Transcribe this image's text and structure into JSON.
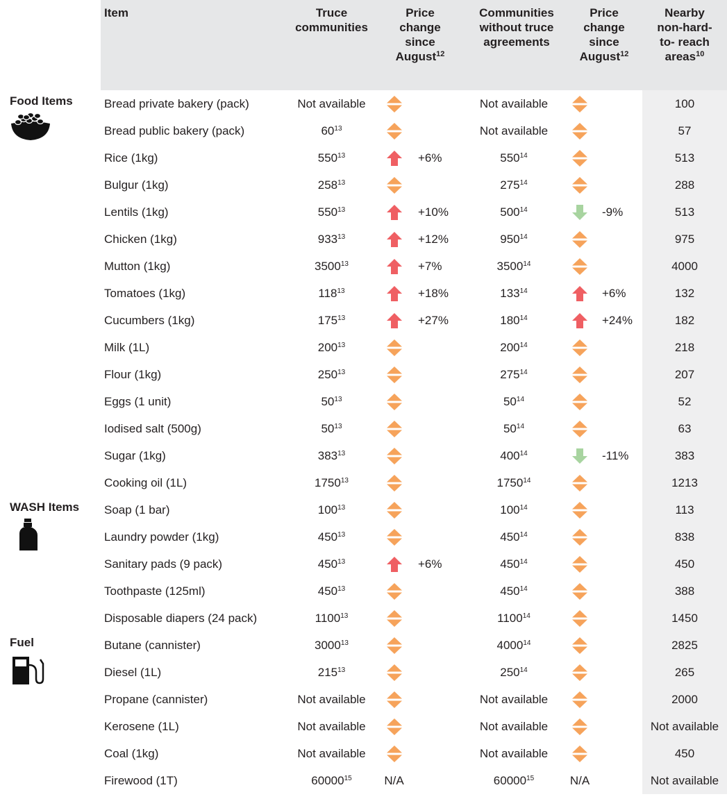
{
  "header": {
    "columns": [
      {
        "text": "Item"
      },
      {
        "text": "Truce communities"
      },
      {
        "text": "Price change since August",
        "note": "12"
      },
      {
        "text": "Communities without truce agreements"
      },
      {
        "text": "Price change since August",
        "note": "12"
      },
      {
        "text": "Nearby non-hard- to- reach areas",
        "note": "10"
      }
    ]
  },
  "groups": [
    {
      "name": "Food Items",
      "icon": "food",
      "rows": [
        {
          "item": "Bread private bakery (pack)",
          "truce": {
            "value": "Not available"
          },
          "truce_change": {
            "icon": "same"
          },
          "non_truce": {
            "value": "Not available"
          },
          "non_truce_change": {
            "icon": "same"
          },
          "nearby": "100"
        },
        {
          "item": "Bread public bakery (pack)",
          "truce": {
            "value": "60",
            "note": "13"
          },
          "truce_change": {
            "icon": "same"
          },
          "non_truce": {
            "value": "Not available"
          },
          "non_truce_change": {
            "icon": "same"
          },
          "nearby": "57"
        },
        {
          "item": "Rice (1kg)",
          "truce": {
            "value": "550",
            "note": "13"
          },
          "truce_change": {
            "icon": "up",
            "label": "+6%"
          },
          "non_truce": {
            "value": "550",
            "note": "14"
          },
          "non_truce_change": {
            "icon": "same"
          },
          "nearby": "513"
        },
        {
          "item": "Bulgur (1kg)",
          "truce": {
            "value": "258",
            "note": "13"
          },
          "truce_change": {
            "icon": "same"
          },
          "non_truce": {
            "value": "275",
            "note": "14"
          },
          "non_truce_change": {
            "icon": "same"
          },
          "nearby": "288"
        },
        {
          "item": "Lentils (1kg)",
          "truce": {
            "value": "550",
            "note": "13"
          },
          "truce_change": {
            "icon": "up",
            "label": "+10%"
          },
          "non_truce": {
            "value": "500",
            "note": "14"
          },
          "non_truce_change": {
            "icon": "down",
            "label": "-9%"
          },
          "nearby": "513"
        },
        {
          "item": "Chicken (1kg)",
          "truce": {
            "value": "933",
            "note": "13"
          },
          "truce_change": {
            "icon": "up",
            "label": "+12%"
          },
          "non_truce": {
            "value": "950",
            "note": "14"
          },
          "non_truce_change": {
            "icon": "same"
          },
          "nearby": "975"
        },
        {
          "item": "Mutton (1kg)",
          "truce": {
            "value": "3500",
            "note": "13"
          },
          "truce_change": {
            "icon": "up",
            "label": "+7%"
          },
          "non_truce": {
            "value": "3500",
            "note": "14"
          },
          "non_truce_change": {
            "icon": "same"
          },
          "nearby": "4000"
        },
        {
          "item": "Tomatoes (1kg)",
          "truce": {
            "value": "118",
            "note": "13"
          },
          "truce_change": {
            "icon": "up",
            "label": "+18%"
          },
          "non_truce": {
            "value": "133",
            "note": "14"
          },
          "non_truce_change": {
            "icon": "up",
            "label": "+6%"
          },
          "nearby": "132"
        },
        {
          "item": "Cucumbers (1kg)",
          "truce": {
            "value": "175",
            "note": "13"
          },
          "truce_change": {
            "icon": "up",
            "label": "+27%"
          },
          "non_truce": {
            "value": "180",
            "note": "14"
          },
          "non_truce_change": {
            "icon": "up",
            "label": "+24%"
          },
          "nearby": "182"
        },
        {
          "item": "Milk (1L)",
          "truce": {
            "value": "200",
            "note": "13"
          },
          "truce_change": {
            "icon": "same"
          },
          "non_truce": {
            "value": "200",
            "note": "14"
          },
          "non_truce_change": {
            "icon": "same"
          },
          "nearby": "218"
        },
        {
          "item": "Flour (1kg)",
          "truce": {
            "value": "250",
            "note": "13"
          },
          "truce_change": {
            "icon": "same"
          },
          "non_truce": {
            "value": "275",
            "note": "14"
          },
          "non_truce_change": {
            "icon": "same"
          },
          "nearby": "207"
        },
        {
          "item": "Eggs (1 unit)",
          "truce": {
            "value": "50",
            "note": "13"
          },
          "truce_change": {
            "icon": "same"
          },
          "non_truce": {
            "value": "50",
            "note": "14"
          },
          "non_truce_change": {
            "icon": "same"
          },
          "nearby": "52"
        },
        {
          "item": "Iodised salt (500g)",
          "truce": {
            "value": "50",
            "note": "13"
          },
          "truce_change": {
            "icon": "same"
          },
          "non_truce": {
            "value": "50",
            "note": "14"
          },
          "non_truce_change": {
            "icon": "same"
          },
          "nearby": "63"
        },
        {
          "item": "Sugar (1kg)",
          "truce": {
            "value": "383",
            "note": "13"
          },
          "truce_change": {
            "icon": "same"
          },
          "non_truce": {
            "value": "400",
            "note": "14"
          },
          "non_truce_change": {
            "icon": "down",
            "label": "-11%"
          },
          "nearby": "383"
        },
        {
          "item": "Cooking oil (1L)",
          "truce": {
            "value": "1750",
            "note": "13"
          },
          "truce_change": {
            "icon": "same"
          },
          "non_truce": {
            "value": "1750",
            "note": "14"
          },
          "non_truce_change": {
            "icon": "same"
          },
          "nearby": "1213"
        }
      ]
    },
    {
      "name": "WASH Items",
      "icon": "wash",
      "rows": [
        {
          "item": "Soap (1 bar)",
          "truce": {
            "value": "100",
            "note": "13"
          },
          "truce_change": {
            "icon": "same"
          },
          "non_truce": {
            "value": "100",
            "note": "14"
          },
          "non_truce_change": {
            "icon": "same"
          },
          "nearby": "113"
        },
        {
          "item": "Laundry powder (1kg)",
          "truce": {
            "value": "450",
            "note": "13"
          },
          "truce_change": {
            "icon": "same"
          },
          "non_truce": {
            "value": "450",
            "note": "14"
          },
          "non_truce_change": {
            "icon": "same"
          },
          "nearby": "838"
        },
        {
          "item": "Sanitary pads (9 pack)",
          "truce": {
            "value": "450",
            "note": "13"
          },
          "truce_change": {
            "icon": "up",
            "label": "+6%"
          },
          "non_truce": {
            "value": "450",
            "note": "14"
          },
          "non_truce_change": {
            "icon": "same"
          },
          "nearby": "450"
        },
        {
          "item": "Toothpaste (125ml)",
          "truce": {
            "value": "450",
            "note": "13"
          },
          "truce_change": {
            "icon": "same"
          },
          "non_truce": {
            "value": "450",
            "note": "14"
          },
          "non_truce_change": {
            "icon": "same"
          },
          "nearby": "388"
        },
        {
          "item": "Disposable diapers (24 pack)",
          "truce": {
            "value": "1100",
            "note": "13"
          },
          "truce_change": {
            "icon": "same"
          },
          "non_truce": {
            "value": "1100",
            "note": "14"
          },
          "non_truce_change": {
            "icon": "same"
          },
          "nearby": "1450"
        }
      ]
    },
    {
      "name": "Fuel",
      "icon": "fuel",
      "rows": [
        {
          "item": "Butane (cannister)",
          "truce": {
            "value": "3000",
            "note": "13"
          },
          "truce_change": {
            "icon": "same"
          },
          "non_truce": {
            "value": "4000",
            "note": "14"
          },
          "non_truce_change": {
            "icon": "same"
          },
          "nearby": "2825"
        },
        {
          "item": "Diesel (1L)",
          "truce": {
            "value": "215",
            "note": "13"
          },
          "truce_change": {
            "icon": "same"
          },
          "non_truce": {
            "value": "250",
            "note": "14"
          },
          "non_truce_change": {
            "icon": "same"
          },
          "nearby": "265"
        },
        {
          "item": "Propane (cannister)",
          "truce": {
            "value": "Not available"
          },
          "truce_change": {
            "icon": "same"
          },
          "non_truce": {
            "value": "Not available"
          },
          "non_truce_change": {
            "icon": "same"
          },
          "nearby": "2000"
        },
        {
          "item": "Kerosene (1L)",
          "truce": {
            "value": "Not available"
          },
          "truce_change": {
            "icon": "same"
          },
          "non_truce": {
            "value": "Not available"
          },
          "non_truce_change": {
            "icon": "same"
          },
          "nearby": "Not available"
        },
        {
          "item": "Coal (1kg)",
          "truce": {
            "value": "Not available"
          },
          "truce_change": {
            "icon": "same"
          },
          "non_truce": {
            "value": "Not available"
          },
          "non_truce_change": {
            "icon": "same"
          },
          "nearby": "450"
        },
        {
          "item": "Firewood (1T)",
          "truce": {
            "value": "60000",
            "note": "15"
          },
          "truce_change": {
            "label": "N/A"
          },
          "non_truce": {
            "value": "60000",
            "note": "15"
          },
          "non_truce_change": {
            "label": "N/A"
          },
          "nearby": "Not available"
        }
      ]
    }
  ]
}
